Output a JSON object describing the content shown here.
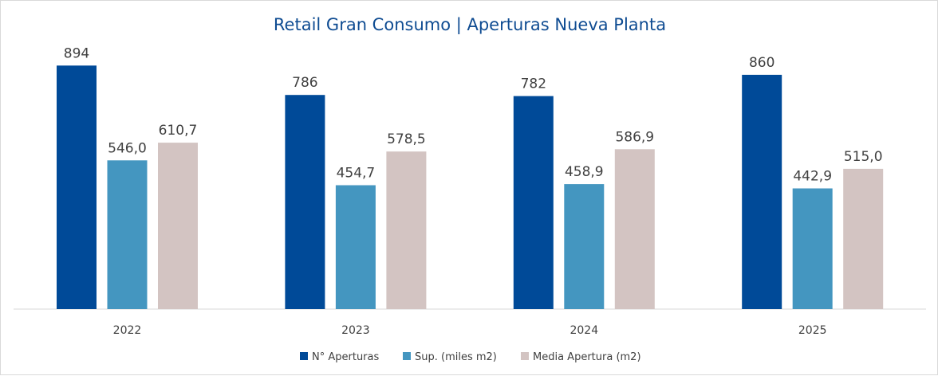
{
  "chart_data": {
    "type": "bar",
    "title": "Retail Gran Consumo | Aperturas Nueva Planta",
    "categories": [
      "2022",
      "2023",
      "2024",
      "2025"
    ],
    "series": [
      {
        "name": "N° Aperturas",
        "color": "#004a98",
        "values": [
          894,
          786,
          782,
          860
        ],
        "labels": [
          "894",
          "786",
          "782",
          "860"
        ]
      },
      {
        "name": "Sup. (miles m2)",
        "color": "#4496c0",
        "values": [
          546.0,
          454.7,
          458.9,
          442.9
        ],
        "labels": [
          "546,0",
          "454,7",
          "458,9",
          "442,9"
        ]
      },
      {
        "name": "Media Apertura (m2)",
        "color": "#d3c4c2",
        "values": [
          610.7,
          578.5,
          586.9,
          515.0
        ],
        "labels": [
          "610,7",
          "578,5",
          "586,9",
          "515,0"
        ]
      }
    ],
    "ylim": [
      0,
      1000
    ],
    "grid": false,
    "legend": "bottom"
  }
}
